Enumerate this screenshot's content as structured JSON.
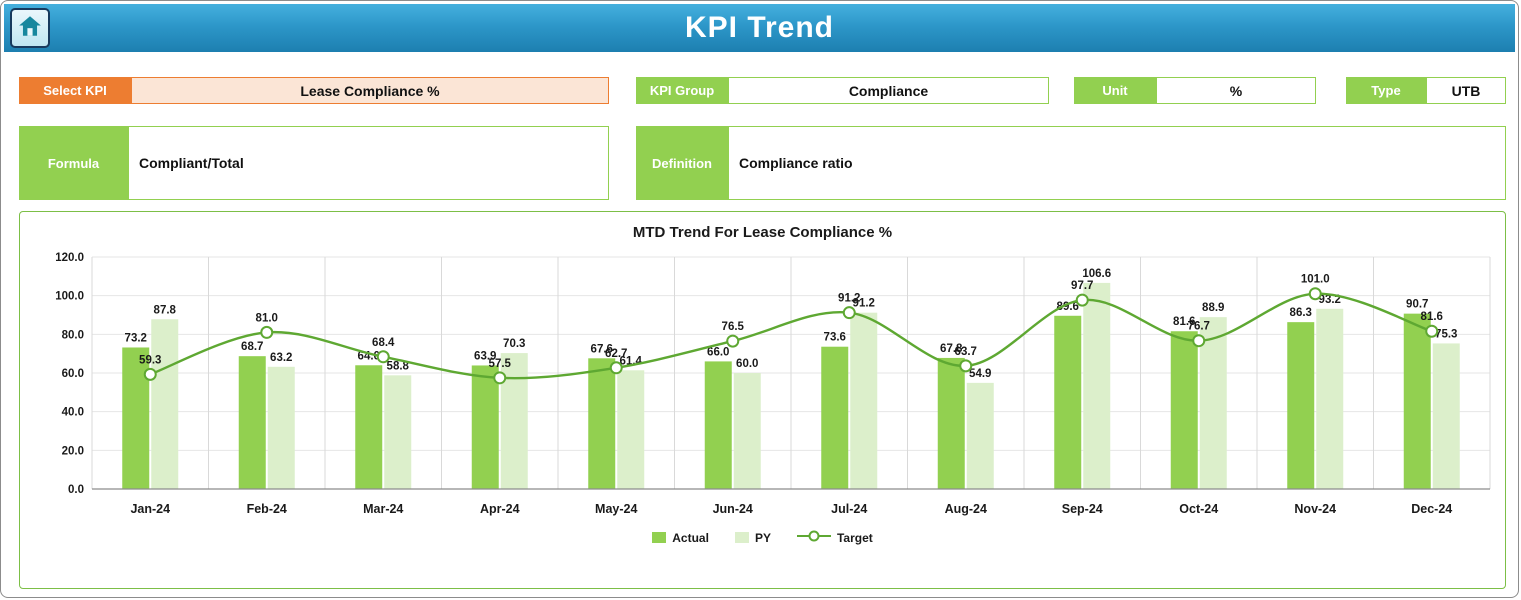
{
  "header": {
    "title": "KPI Trend"
  },
  "controls": {
    "select_kpi": {
      "label": "Select KPI",
      "value": "Lease Compliance %"
    },
    "kpi_group": {
      "label": "KPI Group",
      "value": "Compliance"
    },
    "unit": {
      "label": "Unit",
      "value": "%"
    },
    "type": {
      "label": "Type",
      "value": "UTB"
    },
    "formula": {
      "label": "Formula",
      "value": "Compliant/Total"
    },
    "definition": {
      "label": "Definition",
      "value": "Compliance ratio"
    }
  },
  "chart_data": {
    "type": "bar",
    "combo": "bars + smoothed line",
    "title": "MTD Trend For Lease Compliance %",
    "categories": [
      "Jan-24",
      "Feb-24",
      "Mar-24",
      "Apr-24",
      "May-24",
      "Jun-24",
      "Jul-24",
      "Aug-24",
      "Sep-24",
      "Oct-24",
      "Nov-24",
      "Dec-24"
    ],
    "series": [
      {
        "name": "Actual",
        "type": "bar",
        "color": "#92D050",
        "values": [
          73.2,
          68.7,
          64.0,
          63.9,
          67.6,
          66.0,
          73.6,
          67.8,
          89.6,
          81.6,
          86.3,
          90.7
        ]
      },
      {
        "name": "PY",
        "type": "bar",
        "color": "#DCEFCB",
        "values": [
          87.8,
          63.2,
          58.8,
          70.3,
          61.4,
          60.0,
          91.2,
          54.9,
          106.6,
          88.9,
          93.2,
          75.3
        ]
      },
      {
        "name": "Target",
        "type": "line",
        "color": "#5EA832",
        "values": [
          59.3,
          81.0,
          68.4,
          57.5,
          62.7,
          76.5,
          91.2,
          63.7,
          97.7,
          76.7,
          101.0,
          81.6
        ]
      }
    ],
    "ylim": [
      0,
      120
    ],
    "ytick_step": 20,
    "ytick_decimals": 1,
    "grid": true,
    "legend_position": "bottom"
  },
  "colors": {
    "header_blue": "#2D97C9",
    "accent_orange": "#ED7D31",
    "orange_fill": "#FBE5D6",
    "accent_green": "#92D050",
    "py_green": "#DCEFCB",
    "line_green": "#5EA832",
    "chart_border": "#7CBF46"
  }
}
